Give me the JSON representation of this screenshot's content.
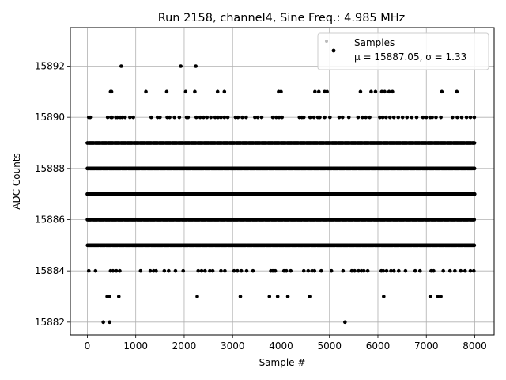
{
  "chart_data": {
    "type": "scatter",
    "title": "Run 2158, channel4, Sine Freq.: 4.985 MHz",
    "xlabel": "Sample #",
    "ylabel": "ADC Counts",
    "xlim": [
      -350,
      8400
    ],
    "ylim": [
      15881.5,
      15893.5
    ],
    "xticks": [
      0,
      1000,
      2000,
      3000,
      4000,
      5000,
      6000,
      7000,
      8000
    ],
    "yticks": [
      15882,
      15884,
      15886,
      15888,
      15890,
      15892
    ],
    "grid": true,
    "legend": {
      "placement": "top-right",
      "label_line1": "Samples",
      "label_line2": "μ = 15887.05, σ = 1.33"
    },
    "colors": {
      "points": "#000000",
      "grid": "#b0b0b0"
    },
    "series": [
      {
        "name": "Samples",
        "x_range": [
          0,
          8000
        ],
        "dense_levels": [
          15885,
          15886,
          15887,
          15888,
          15889
        ],
        "sparse_points": [
          {
            "y": 15892,
            "x": [
              700,
              1930,
              2240
            ]
          },
          {
            "y": 15891,
            "x": [
              480,
              500,
              1210,
              1640,
              2030,
              2220,
              2690,
              2830,
              3950,
              4000,
              4700,
              4780,
              4900,
              4950,
              5640,
              5860,
              5950,
              6080,
              6140,
              6230,
              6300,
              7320,
              7630
            ]
          },
          {
            "y": 15890,
            "x": [
              30,
              60,
              420,
              490,
              510,
              590,
              620,
              680,
              720,
              780,
              880,
              950,
              1320,
              1450,
              1500,
              1650,
              1700,
              1800,
              1900,
              2050,
              2080,
              2250,
              2330,
              2400,
              2470,
              2550,
              2640,
              2700,
              2760,
              2830,
              2900,
              3060,
              3110,
              3200,
              3280,
              3460,
              3520,
              3600,
              3830,
              3900,
              3960,
              4020,
              4380,
              4430,
              4470,
              4600,
              4680,
              4760,
              4800,
              4900,
              5010,
              5200,
              5270,
              5400,
              5590,
              5680,
              5750,
              5830,
              6040,
              6100,
              6170,
              6250,
              6330,
              6420,
              6510,
              6600,
              6700,
              6800,
              6930,
              7000,
              7080,
              7120,
              7200,
              7300,
              7540,
              7640,
              7730,
              7830,
              7910,
              7990
            ]
          },
          {
            "y": 15884,
            "x": [
              30,
              170,
              480,
              530,
              600,
              670,
              1100,
              1300,
              1370,
              1420,
              1590,
              1680,
              1820,
              1980,
              2290,
              2360,
              2430,
              2530,
              2590,
              2760,
              2840,
              3030,
              3100,
              3180,
              3290,
              3420,
              3790,
              3830,
              3880,
              4060,
              4110,
              4200,
              4470,
              4560,
              4640,
              4690,
              4830,
              5040,
              5280,
              5460,
              5520,
              5600,
              5660,
              5710,
              5790,
              6070,
              6110,
              6180,
              6270,
              6330,
              6430,
              6570,
              6770,
              6870,
              7100,
              7150,
              7350,
              7490,
              7590,
              7710,
              7800,
              7910,
              7980
            ]
          },
          {
            "y": 15883,
            "x": [
              410,
              460,
              650,
              2270,
              3160,
              3760,
              3930,
              4140,
              4590,
              6120,
              7080,
              7240,
              7300
            ]
          },
          {
            "y": 15882,
            "x": [
              330,
              460,
              5320
            ]
          }
        ]
      }
    ]
  }
}
